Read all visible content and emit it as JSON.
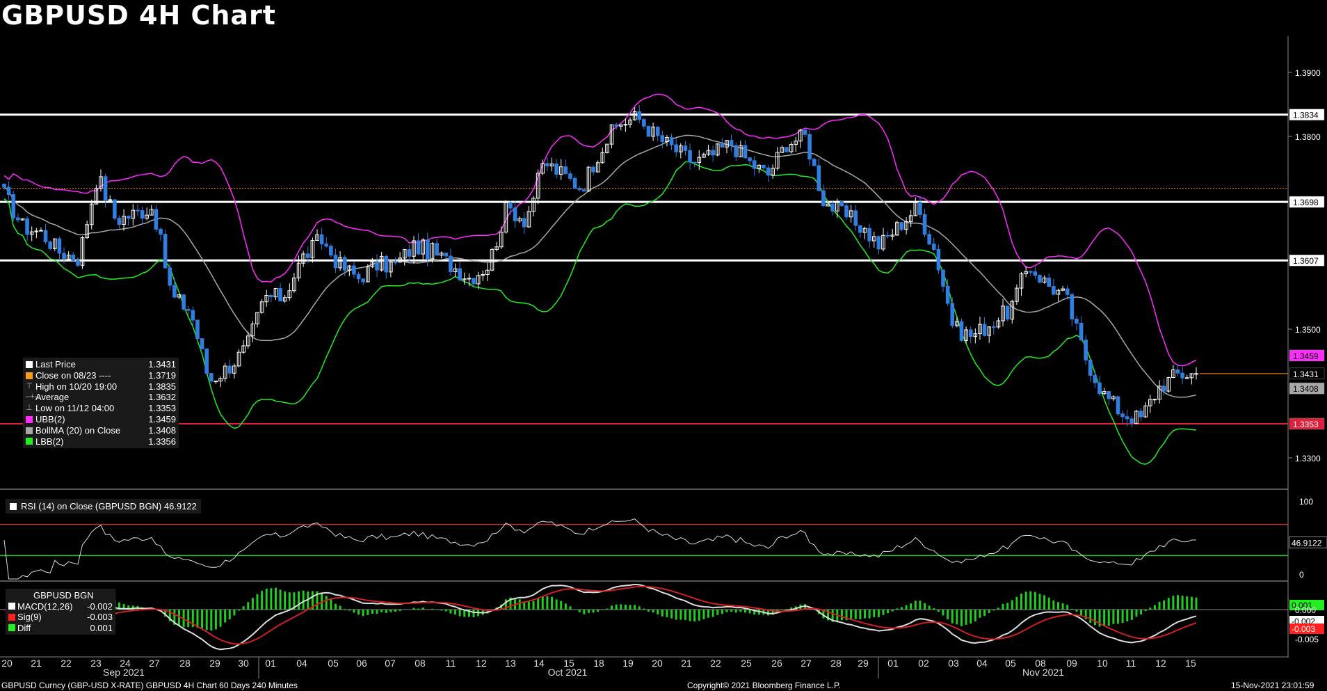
{
  "title": "GBPUSD 4H Chart",
  "footer": {
    "left": "GBPUSD Curncy (GBP-USD X-RATE) GBPUSD 4H Chart 60 Days 240 Minutes",
    "center": "Copyright© 2021 Bloomberg Finance L.P.",
    "right": "15-Nov-2021 23:01:59"
  },
  "colors": {
    "up_candle": "#ffffff",
    "down_candle": "#2f7ee0",
    "upper_band": "#ff2cff",
    "lower_band": "#22ee22",
    "moving_average": "#a8a8a8",
    "level_line": "#ffffff",
    "support_line": "#e0203a",
    "close_line": "#ff9a1a"
  },
  "legend": {
    "rows": [
      {
        "label": "Last Price",
        "value": "1.3431",
        "color": "#ffffff",
        "symbol": ""
      },
      {
        "label": "Close on 08/23 ----",
        "value": "1.3719",
        "color": "#ff9a1a",
        "symbol": ""
      },
      {
        "label": "High on 10/20 19:00",
        "value": "1.3835",
        "color": "",
        "symbol": "⊤"
      },
      {
        "label": "Average",
        "value": "1.3632",
        "color": "",
        "symbol": "–+–"
      },
      {
        "label": "Low on 11/12 04:00",
        "value": "1.3353",
        "color": "",
        "symbol": "⊥"
      },
      {
        "label": "UBB(2)",
        "value": "1.3459",
        "color": "#ff2cff",
        "symbol": ""
      },
      {
        "label": "BollMA (20)  on Close",
        "value": "1.3408",
        "color": "#a8a8a8",
        "symbol": ""
      },
      {
        "label": "LBB(2)",
        "value": "1.3356",
        "color": "#22ee22",
        "symbol": ""
      }
    ]
  },
  "rsi": {
    "label": "RSI (14)  on Close (GBPUSD BGN) 46.9122",
    "last_value": "46.9122",
    "axis_ticks": [
      "100",
      "0"
    ],
    "upper_level": 70,
    "lower_level": 30
  },
  "macd": {
    "header": "GBPUSD BGN",
    "rows": [
      {
        "label": "MACD(12,26)",
        "value": "-0.002",
        "color": "#ffffff"
      },
      {
        "label": "Sig(9)",
        "value": "-0.003",
        "color": "#ff2020"
      },
      {
        "label": "Diff",
        "value": "0.001",
        "color": "#22ee22"
      }
    ],
    "tags": [
      "0.001",
      "-0.002",
      "-0.003"
    ],
    "axis_ticks": [
      "0.000",
      "-0.005"
    ]
  },
  "chart_data": {
    "type": "candlestick",
    "price_axis_ticks": [
      "1.3900",
      "1.3800",
      "1.3500",
      "1.3300"
    ],
    "price_tags": [
      {
        "text": "1.3834",
        "bg": "#ffffff",
        "fg": "#000000"
      },
      {
        "text": "1.3698",
        "bg": "#ffffff",
        "fg": "#000000"
      },
      {
        "text": "1.3607",
        "bg": "#ffffff",
        "fg": "#000000"
      },
      {
        "text": "1.3459",
        "bg": "#ff2cff",
        "fg": "#000000"
      },
      {
        "text": "1.3431",
        "bg": "#000000",
        "fg": "#ffffff"
      },
      {
        "text": "1.3408",
        "bg": "#a8a8a8",
        "fg": "#000000"
      },
      {
        "text": "1.3353",
        "bg": "#e0203a",
        "fg": "#ffffff"
      }
    ],
    "horizontal_levels": [
      1.3834,
      1.3698,
      1.3607
    ],
    "support_level": 1.3353,
    "close_reference": 1.3719,
    "last_price": 1.3431,
    "x_date_labels": [
      "20",
      "21",
      "22",
      "23",
      "24",
      "27",
      "28",
      "29",
      "30",
      "01",
      "04",
      "05",
      "06",
      "07",
      "08",
      "11",
      "12",
      "13",
      "14",
      "15",
      "18",
      "19",
      "20",
      "21",
      "22",
      "25",
      "26",
      "27",
      "28",
      "29",
      "01",
      "02",
      "03",
      "04",
      "05",
      "08",
      "09",
      "10",
      "11",
      "12",
      "15"
    ],
    "months": [
      "Sep 2021",
      "Oct 2021",
      "Nov 2021"
    ],
    "price_path_keypoints": [
      1.371,
      1.366,
      1.365,
      1.362,
      1.361,
      1.374,
      1.367,
      1.368,
      1.369,
      1.355,
      1.353,
      1.342,
      1.344,
      1.347,
      1.355,
      1.355,
      1.361,
      1.364,
      1.36,
      1.358,
      1.36,
      1.36,
      1.363,
      1.362,
      1.36,
      1.358,
      1.36,
      1.369,
      1.367,
      1.376,
      1.374,
      1.372,
      1.378,
      1.382,
      1.383,
      1.38,
      1.378,
      1.376,
      1.377,
      1.379,
      1.376,
      1.374,
      1.379,
      1.38,
      1.37,
      1.368,
      1.366,
      1.363,
      1.366,
      1.369,
      1.362,
      1.35,
      1.349,
      1.351,
      1.353,
      1.36,
      1.357,
      1.355,
      1.346,
      1.34,
      1.337,
      1.336,
      1.341,
      1.343,
      1.3431
    ]
  }
}
